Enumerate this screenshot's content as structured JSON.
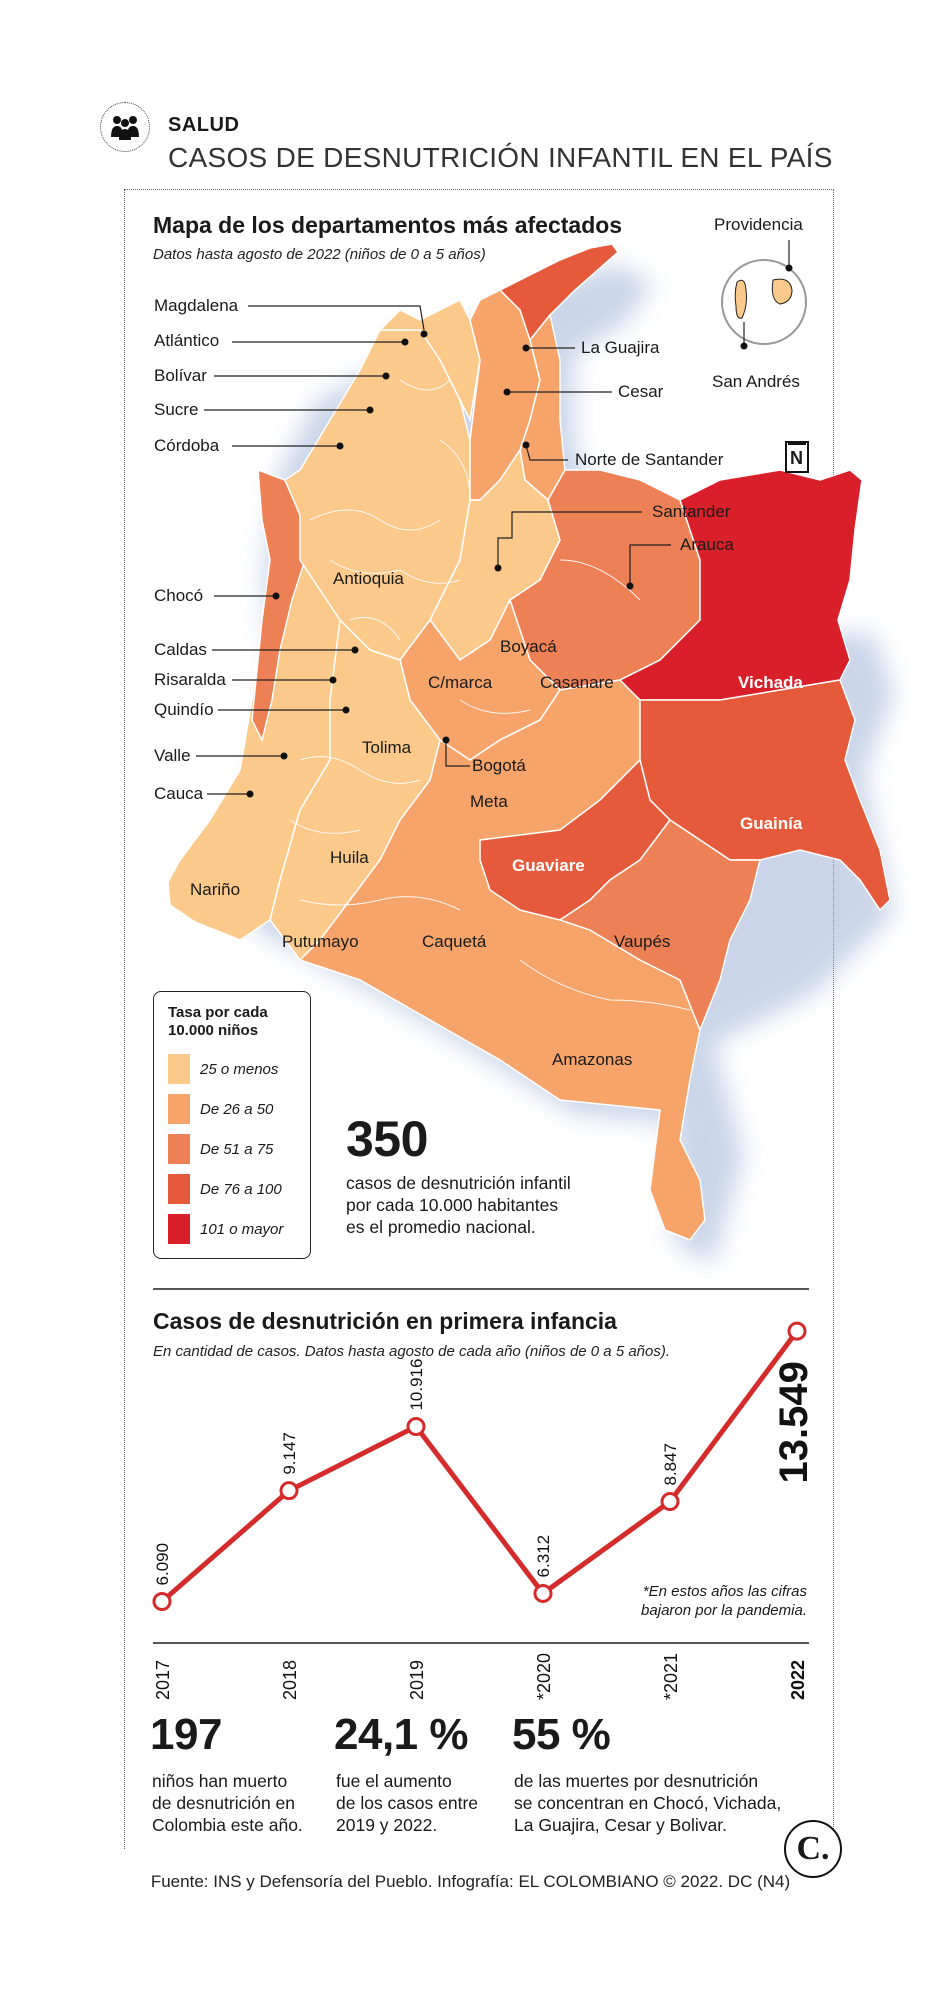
{
  "header": {
    "section": "SALUD",
    "title": "CASOS DE DESNUTRICIÓN INFANTIL EN EL PAÍS",
    "icon": "people-icon"
  },
  "map": {
    "title": "Mapa de los departamentos más afectados",
    "subtitle": "Datos hasta agosto de 2022 (niños de 0 a 5 años)",
    "north_symbol": "N",
    "islands": {
      "providencia": "Providencia",
      "san_andres": "San Andrés"
    },
    "left_labels": [
      "Magdalena",
      "Atlántico",
      "Bolívar",
      "Sucre",
      "Córdoba",
      "Chocó",
      "Caldas",
      "Risaralda",
      "Quindío",
      "Valle",
      "Cauca"
    ],
    "right_labels": [
      "La Guajira",
      "Cesar",
      "Norte de Santander",
      "Santander",
      "Arauca"
    ],
    "inside_labels": [
      "Antioquia",
      "Boyacá",
      "C/marca",
      "Casanare",
      "Tolima",
      "Bogotá",
      "Meta",
      "Huila",
      "Nariño",
      "Putumayo",
      "Caquetá",
      "Vaupés",
      "Amazonas"
    ],
    "highlight_labels": [
      "Vichada",
      "Guainía",
      "Guaviare"
    ],
    "legend": {
      "title_line1": "Tasa por cada",
      "title_line2": "10.000 niños",
      "items": [
        {
          "label": "25 o menos",
          "color": "#fbc98a"
        },
        {
          "label": "De 26 a 50",
          "color": "#f6a46a"
        },
        {
          "label": "De 51 a 75",
          "color": "#ee8055"
        },
        {
          "label": "De 76 a 100",
          "color": "#e65a3c"
        },
        {
          "label": "101 o mayor",
          "color": "#d9202a"
        }
      ]
    },
    "national": {
      "number": "350",
      "line1": "casos de desnutrición infantil",
      "line2": "por cada 10.000 habitantes",
      "line3": "es el promedio nacional."
    }
  },
  "chart_data": {
    "type": "line",
    "title": "Casos de desnutrición en primera infancia",
    "subtitle": "En cantidad de casos. Datos hasta agosto de cada año (niños de 0 a 5 años).",
    "categories": [
      "2017",
      "2018",
      "2019",
      "*2020",
      "*2021",
      "2022"
    ],
    "values": [
      6090,
      9147,
      10916,
      6312,
      8847,
      13549
    ],
    "value_labels": [
      "6.090",
      "9.147",
      "10.916",
      "6.312",
      "8.847",
      "13.549"
    ],
    "ylim": [
      5800,
      13800
    ],
    "color": "#d42b2b",
    "note_line1": "*En estos años las cifras",
    "note_line2": "bajaron por la pandemia."
  },
  "stats": [
    {
      "number": "197",
      "lines": [
        "niños han muerto",
        "de desnutrición en",
        "Colombia este año."
      ]
    },
    {
      "number": "24,1 %",
      "lines": [
        "fue el aumento",
        "de los casos entre",
        "2019 y 2022."
      ]
    },
    {
      "number": "55 %",
      "lines": [
        "de las muertes por desnutrición",
        "se concentran en Chocó, Vichada,",
        "La Guajira, Cesar y Bolivar."
      ]
    }
  ],
  "footer": {
    "source": "Fuente: INS y Defensoría del Pueblo. Infografía: EL COLOMBIANO © 2022. DC (N4)",
    "logo": "C."
  }
}
